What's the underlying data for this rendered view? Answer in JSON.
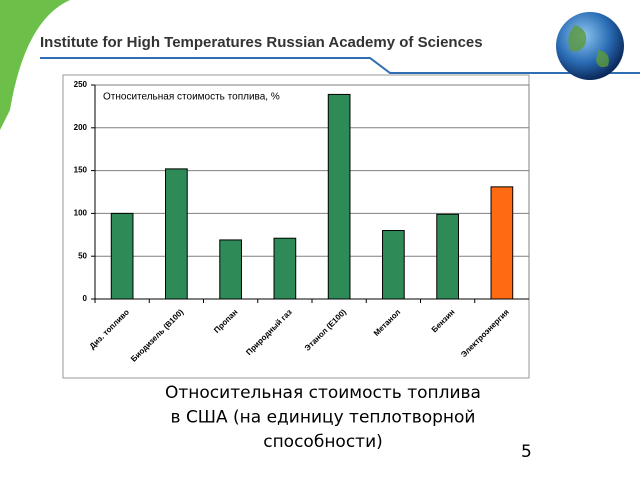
{
  "header": {
    "title": "Institute for High Temperatures Russian Academy of Sciences"
  },
  "chart_data": {
    "type": "bar",
    "title": "Относительная стоимость топлива, %",
    "categories": [
      "Диз. топливо",
      "Биодизель (B100)",
      "Пропан",
      "Природный газ",
      "Этанол (E100)",
      "Метанол",
      "Бензин",
      "Электроэнергия"
    ],
    "values": [
      100,
      152,
      69,
      71,
      239,
      80,
      99,
      131
    ],
    "colors": [
      "#2e8b57",
      "#2e8b57",
      "#2e8b57",
      "#2e8b57",
      "#2e8b57",
      "#2e8b57",
      "#2e8b57",
      "#ff6a13"
    ],
    "ylim": [
      0,
      250
    ],
    "yticks": [
      0,
      50,
      100,
      150,
      200,
      250
    ],
    "grid": true
  },
  "caption": [
    "Относительная стоимость топлива",
    "в США (на единицу теплотворной",
    "способности)"
  ],
  "page_number": "5"
}
